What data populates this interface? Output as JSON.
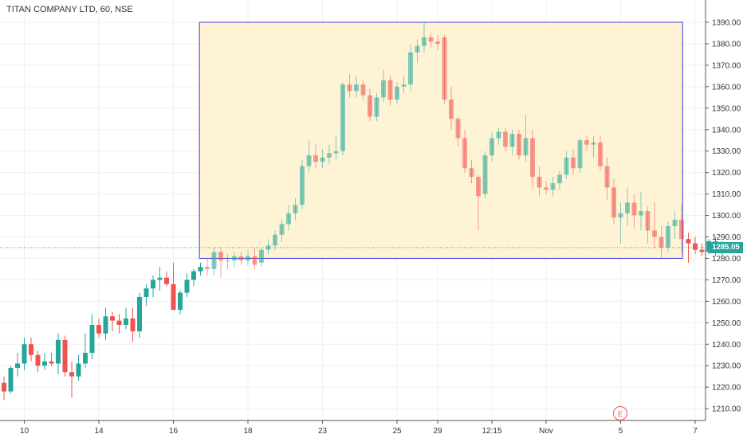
{
  "chart_data": {
    "type": "candlestick",
    "title": "TITAN COMPANY LTD, 60, NSE",
    "last_price_label": "1285.05",
    "last_price": 1285.05,
    "y_range": [
      1204,
      1395
    ],
    "y_ticks": [
      "1210.00",
      "1220.00",
      "1230.00",
      "1240.00",
      "1250.00",
      "1260.00",
      "1270.00",
      "1280.00",
      "1290.00",
      "1300.00",
      "1310.00",
      "1320.00",
      "1330.00",
      "1340.00",
      "1350.00",
      "1360.00",
      "1370.00",
      "1380.00",
      "1390.00"
    ],
    "x_ticks": [
      "10",
      "14",
      "16",
      "18",
      "23",
      "25",
      "29",
      "12:15",
      "Nov",
      "5",
      "7"
    ],
    "x_tick_bars": [
      3,
      14,
      25,
      36,
      47,
      58,
      64,
      72,
      80,
      91,
      102
    ],
    "rectangle": {
      "from_bar": 29.2,
      "to_bar": 100.5,
      "top": 1390,
      "bottom": 1280
    },
    "earnings_marker": "E",
    "colors": {
      "up": "#26a69a",
      "down": "#ef5350",
      "rect_fill": "#fff3d6",
      "rect_border": "#3f3fd9",
      "grid": "#eef0f3"
    },
    "candles": [
      [
        1222,
        1225,
        1214,
        1218
      ],
      [
        1218,
        1230,
        1217,
        1229
      ],
      [
        1229,
        1236,
        1225,
        1231
      ],
      [
        1231,
        1243,
        1228,
        1240
      ],
      [
        1240,
        1243,
        1232,
        1235
      ],
      [
        1235,
        1237,
        1227,
        1230
      ],
      [
        1230,
        1236,
        1228,
        1232
      ],
      [
        1232,
        1236,
        1230,
        1231
      ],
      [
        1231,
        1245,
        1226,
        1242
      ],
      [
        1242,
        1244,
        1225,
        1227
      ],
      [
        1227,
        1232,
        1215,
        1225
      ],
      [
        1225,
        1235,
        1223,
        1231
      ],
      [
        1231,
        1245,
        1229,
        1236
      ],
      [
        1236,
        1254,
        1233,
        1249
      ],
      [
        1249,
        1252,
        1243,
        1245
      ],
      [
        1245,
        1257,
        1242,
        1253
      ],
      [
        1253,
        1255,
        1246,
        1251
      ],
      [
        1251,
        1254,
        1245,
        1249
      ],
      [
        1249,
        1257,
        1247,
        1252
      ],
      [
        1252,
        1257,
        1241,
        1246
      ],
      [
        1246,
        1264,
        1243,
        1262
      ],
      [
        1262,
        1268,
        1258,
        1266
      ],
      [
        1266,
        1272,
        1262,
        1270
      ],
      [
        1270,
        1276,
        1265,
        1271
      ],
      [
        1271,
        1274,
        1267,
        1268
      ],
      [
        1268,
        1278,
        1256,
        1256
      ],
      [
        1256,
        1265,
        1254,
        1264
      ],
      [
        1264,
        1273,
        1262,
        1270
      ],
      [
        1270,
        1275,
        1267,
        1274
      ],
      [
        1274,
        1278,
        1272,
        1276
      ],
      [
        1276,
        1280,
        1272,
        1275
      ],
      [
        1275,
        1285,
        1272,
        1283
      ],
      [
        1283,
        1285,
        1271,
        1279
      ],
      [
        1279,
        1282,
        1275,
        1279
      ],
      [
        1279,
        1283,
        1276,
        1281
      ],
      [
        1281,
        1283,
        1277,
        1279
      ],
      [
        1279,
        1284,
        1277,
        1281
      ],
      [
        1281,
        1285,
        1275,
        1277
      ],
      [
        1278,
        1285,
        1276,
        1284
      ],
      [
        1284,
        1289,
        1282,
        1286
      ],
      [
        1286,
        1293,
        1284,
        1291
      ],
      [
        1291,
        1298,
        1288,
        1296
      ],
      [
        1296,
        1305,
        1293,
        1301
      ],
      [
        1301,
        1308,
        1298,
        1305
      ],
      [
        1305,
        1326,
        1303,
        1323
      ],
      [
        1323,
        1335,
        1320,
        1328
      ],
      [
        1328,
        1333,
        1322,
        1325
      ],
      [
        1325,
        1331,
        1322,
        1327
      ],
      [
        1327,
        1333,
        1324,
        1329
      ],
      [
        1329,
        1337,
        1326,
        1330
      ],
      [
        1330,
        1362,
        1328,
        1361
      ],
      [
        1361,
        1366,
        1355,
        1358
      ],
      [
        1358,
        1365,
        1355,
        1361
      ],
      [
        1361,
        1363,
        1354,
        1356
      ],
      [
        1356,
        1359,
        1344,
        1346
      ],
      [
        1346,
        1357,
        1344,
        1355
      ],
      [
        1355,
        1368,
        1353,
        1363
      ],
      [
        1363,
        1365,
        1351,
        1354
      ],
      [
        1354,
        1362,
        1352,
        1360
      ],
      [
        1360,
        1365,
        1357,
        1361
      ],
      [
        1361,
        1380,
        1358,
        1376
      ],
      [
        1376,
        1382,
        1371,
        1379
      ],
      [
        1379,
        1390,
        1376,
        1383
      ],
      [
        1383,
        1385,
        1378,
        1381
      ],
      [
        1381,
        1384,
        1377,
        1380
      ],
      [
        1383,
        1384,
        1352,
        1354
      ],
      [
        1354,
        1360,
        1340,
        1345
      ],
      [
        1345,
        1346,
        1332,
        1336
      ],
      [
        1336,
        1340,
        1320,
        1322
      ],
      [
        1322,
        1326,
        1315,
        1318
      ],
      [
        1318,
        1319,
        1293,
        1309
      ],
      [
        1310,
        1330,
        1308,
        1328
      ],
      [
        1328,
        1339,
        1325,
        1336
      ],
      [
        1336,
        1341,
        1333,
        1339
      ],
      [
        1339,
        1341,
        1330,
        1332
      ],
      [
        1332,
        1340,
        1328,
        1338
      ],
      [
        1338,
        1340,
        1326,
        1328
      ],
      [
        1328,
        1347,
        1325,
        1336
      ],
      [
        1336,
        1340,
        1313,
        1318
      ],
      [
        1318,
        1323,
        1309,
        1313
      ],
      [
        1313,
        1316,
        1310,
        1312
      ],
      [
        1312,
        1318,
        1309,
        1315
      ],
      [
        1315,
        1321,
        1312,
        1319
      ],
      [
        1319,
        1330,
        1317,
        1327
      ],
      [
        1327,
        1331,
        1319,
        1322
      ],
      [
        1322,
        1336,
        1320,
        1335
      ],
      [
        1335,
        1337,
        1330,
        1333
      ],
      [
        1333,
        1337,
        1327,
        1334
      ],
      [
        1334,
        1337,
        1321,
        1323
      ],
      [
        1323,
        1327,
        1307,
        1313
      ],
      [
        1313,
        1317,
        1296,
        1299
      ],
      [
        1299,
        1306,
        1287,
        1301
      ],
      [
        1301,
        1313,
        1295,
        1306
      ],
      [
        1306,
        1310,
        1294,
        1300
      ],
      [
        1300,
        1311,
        1293,
        1302
      ],
      [
        1302,
        1304,
        1287,
        1293
      ],
      [
        1293,
        1306,
        1285,
        1290
      ],
      [
        1290,
        1295,
        1280,
        1285
      ],
      [
        1285,
        1297,
        1283,
        1295
      ],
      [
        1295,
        1302,
        1289,
        1298
      ],
      [
        1298,
        1305,
        1283,
        1289
      ],
      [
        1289,
        1292,
        1278,
        1287
      ],
      [
        1287,
        1290,
        1282,
        1284
      ],
      [
        1284,
        1287,
        1281,
        1283
      ],
      [
        1283,
        1289,
        1282,
        1288
      ],
      [
        1288,
        1290,
        1281,
        1283
      ],
      [
        1283,
        1288,
        1281,
        1285
      ]
    ]
  }
}
